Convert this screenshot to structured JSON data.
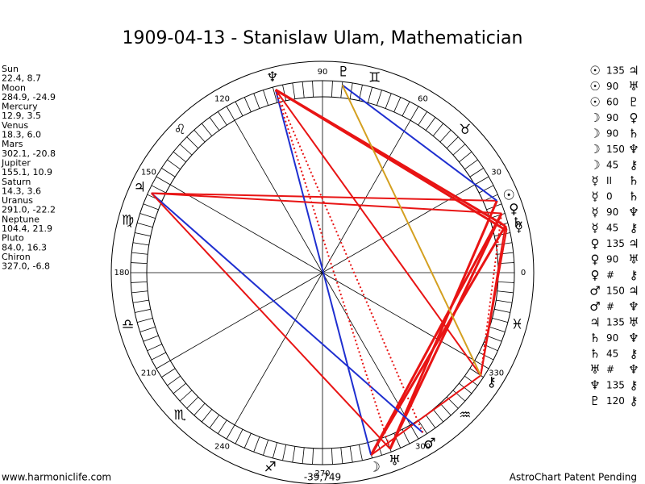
{
  "title": "1909-04-13 - Stanislaw Ulam, Mathematician",
  "planets": [
    {
      "name": "Sun",
      "glyph": "☉",
      "position": "22.4, 8.7"
    },
    {
      "name": "Moon",
      "glyph": "☽",
      "position": "284.9, -24.9"
    },
    {
      "name": "Mercury",
      "glyph": "☿",
      "position": "12.9, 3.5"
    },
    {
      "name": "Venus",
      "glyph": "♀",
      "position": "18.3, 6.0"
    },
    {
      "name": "Mars",
      "glyph": "♂",
      "position": "302.1, -20.8"
    },
    {
      "name": "Jupiter",
      "glyph": "♃",
      "position": "155.1, 10.9"
    },
    {
      "name": "Saturn",
      "glyph": "♄",
      "position": "14.3, 3.6"
    },
    {
      "name": "Uranus",
      "glyph": "♅",
      "position": "291.0, -22.2"
    },
    {
      "name": "Neptune",
      "glyph": "♆",
      "position": "104.4, 21.9"
    },
    {
      "name": "Pluto",
      "glyph": "♇",
      "position": "84.0, 16.3"
    },
    {
      "name": "Chiron",
      "glyph": "⚷",
      "position": "327.0, -6.8"
    }
  ],
  "aspects": [
    [
      "☉",
      "135",
      "♃"
    ],
    [
      "☉",
      "90",
      "♅"
    ],
    [
      "☉",
      "60",
      "♇"
    ],
    [
      "☽",
      "90",
      "♀"
    ],
    [
      "☽",
      "90",
      "♄"
    ],
    [
      "☽",
      "150",
      "♆"
    ],
    [
      "☽",
      "45",
      "⚷"
    ],
    [
      "☿",
      "II",
      "♄"
    ],
    [
      "☿",
      "0",
      "♄"
    ],
    [
      "☿",
      "90",
      "♆"
    ],
    [
      "☿",
      "45",
      "⚷"
    ],
    [
      "♀",
      "135",
      "♃"
    ],
    [
      "♀",
      "90",
      "♅"
    ],
    [
      "♀",
      "#",
      "⚷"
    ],
    [
      "♂",
      "150",
      "♃"
    ],
    [
      "♂",
      "#",
      "♆"
    ],
    [
      "♃",
      "135",
      "♅"
    ],
    [
      "♄",
      "90",
      "♆"
    ],
    [
      "♄",
      "45",
      "⚷"
    ],
    [
      "♅",
      "#",
      "♆"
    ],
    [
      "♆",
      "135",
      "⚷"
    ],
    [
      "♇",
      "120",
      "⚷"
    ]
  ],
  "degree_labels": [
    0,
    30,
    60,
    90,
    120,
    150,
    180,
    210,
    240,
    270,
    300,
    330
  ],
  "zodiac": [
    null,
    "♉",
    "♊",
    null,
    "♌",
    "♍",
    "♎",
    "♏",
    "♐",
    null,
    "♒",
    "♓"
  ],
  "footer": {
    "left": "www.harmoniclife.com",
    "center": "-39,749",
    "right": "AstroChart Patent Pending"
  }
}
